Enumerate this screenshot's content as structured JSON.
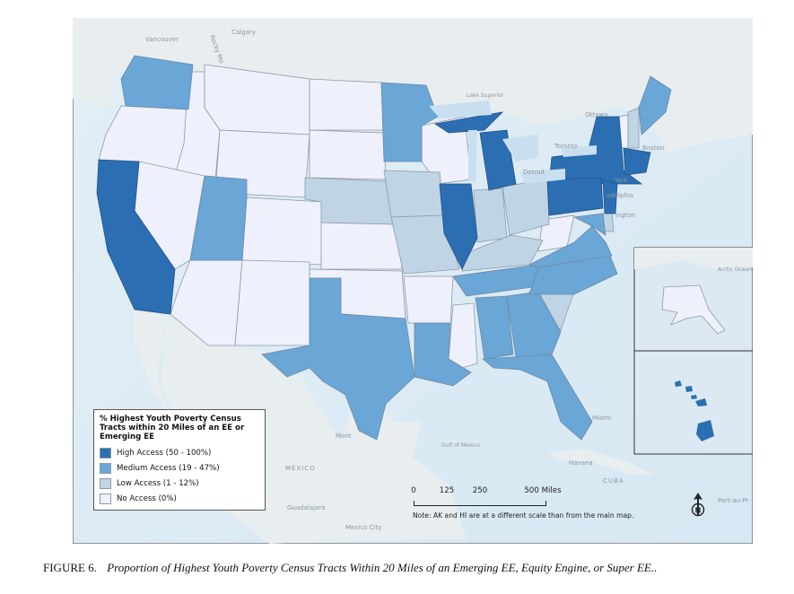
{
  "map": {
    "legend": {
      "title": "% Highest Youth Poverty Census Tracts within 20 Miles of an EE or Emerging EE",
      "items": [
        {
          "label": "High Access (50 - 100%)",
          "color": "#2b6fb2"
        },
        {
          "label": "Medium Access (19 - 47%)",
          "color": "#6aa6d6"
        },
        {
          "label": "Low Access (1 - 12%)",
          "color": "#bfd5e6"
        },
        {
          "label": "No Access (0%)",
          "color": "#eef0fb"
        }
      ]
    },
    "scale": {
      "ticks": [
        "0",
        "125",
        "250",
        "500 Miles"
      ],
      "note": "Note: AK and HI are at a different scale than from the main map."
    },
    "places": {
      "vancouver": "Vancouver",
      "calgary": "Calgary",
      "rocky": "Rocky Mo",
      "ottawa": "Ottawa",
      "toronto": "Toronto",
      "detroit": "Detroit",
      "boston": "Boston",
      "york": "York",
      "philadelphia": "adelphia",
      "washington": "ington",
      "miami": "Miami",
      "havana": "Havana",
      "cuba": "CUBA",
      "mexico": "MÉXICO",
      "guadalajara": "Guadalajara",
      "mexico_city": "Mexico City",
      "monterrey": "Mont",
      "port": "Port-au-Pr",
      "gulf": "Gulf of Mexico",
      "lake": "Lake Superior",
      "arctic": "Arctic Ocean"
    }
  },
  "caption": {
    "figure": "FIGURE 6.",
    "text": "Proportion of Highest Youth Poverty Census Tracts Within 20 Miles of an Emerging EE, Equity Engine, or Super EE.."
  }
}
